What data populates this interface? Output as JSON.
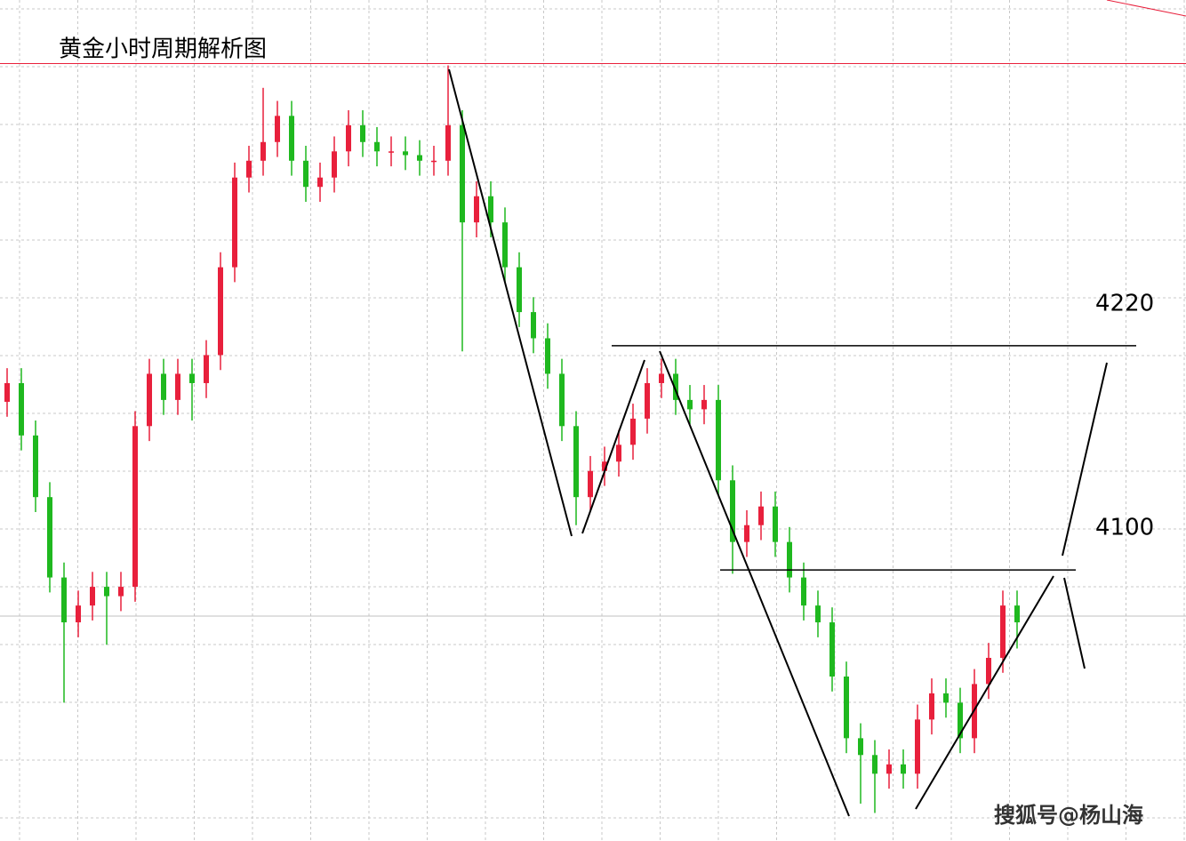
{
  "chart_data": {
    "type": "candlestick",
    "title": "黄金小时周期解析图",
    "watermark": "搜狐号@杨山海",
    "up_color": "#e8203c",
    "down_color": "#1fb81f",
    "ylim": [
      3955,
      4405
    ],
    "open": [
      4190,
      4200,
      4172,
      4139,
      4096,
      4072,
      4081,
      4091,
      4086,
      4091,
      4177,
      4205,
      4191,
      4205,
      4200,
      4215,
      4262,
      4310,
      4319,
      4329,
      4343,
      4319,
      4305,
      4310,
      4324,
      4338,
      4329,
      4324,
      4324,
      4322,
      4319,
      4319,
      4338,
      4286,
      4300,
      4286,
      4262,
      4238,
      4224,
      4205,
      4177,
      4139,
      4153,
      4158,
      4167,
      4181,
      4200,
      4205,
      4191,
      4186,
      4191,
      4148,
      4115,
      4124,
      4134,
      4115,
      4096,
      4081,
      4072,
      4043,
      4010,
      4001,
      3991,
      3996,
      3991,
      4020,
      4034,
      4029,
      4010,
      4039,
      4053,
      4081
    ],
    "high": [
      4208,
      4208,
      4180,
      4147,
      4104,
      4089,
      4099,
      4099,
      4099,
      4185,
      4213,
      4213,
      4213,
      4213,
      4223,
      4270,
      4318,
      4327,
      4358,
      4351,
      4351,
      4327,
      4318,
      4332,
      4346,
      4346,
      4337,
      4332,
      4332,
      4330,
      4327,
      4370,
      4346,
      4308,
      4308,
      4294,
      4270,
      4246,
      4232,
      4213,
      4185,
      4161,
      4166,
      4175,
      4189,
      4208,
      4213,
      4213,
      4199,
      4199,
      4199,
      4156,
      4132,
      4142,
      4142,
      4123,
      4104,
      4089,
      4080,
      4051,
      4018,
      4009,
      4004,
      4004,
      4028,
      4042,
      4042,
      4037,
      4047,
      4061,
      4089,
      4089
    ],
    "low": [
      4182,
      4164,
      4131,
      4088,
      4029,
      4064,
      4073,
      4060,
      4078,
      4083,
      4169,
      4183,
      4183,
      4180,
      4192,
      4207,
      4254,
      4302,
      4311,
      4321,
      4311,
      4297,
      4297,
      4302,
      4316,
      4321,
      4316,
      4316,
      4314,
      4311,
      4311,
      4311,
      4217,
      4278,
      4278,
      4254,
      4230,
      4216,
      4197,
      4169,
      4124,
      4131,
      4145,
      4150,
      4159,
      4173,
      4192,
      4183,
      4178,
      4178,
      4140,
      4098,
      4107,
      4116,
      4107,
      4088,
      4073,
      4064,
      4035,
      4002,
      3975,
      3970,
      3983,
      3983,
      3983,
      4012,
      4021,
      4002,
      4002,
      4031,
      4045,
      4058
    ],
    "close": [
      4200,
      4172,
      4139,
      4096,
      4072,
      4081,
      4091,
      4086,
      4091,
      4177,
      4205,
      4191,
      4205,
      4200,
      4215,
      4262,
      4310,
      4319,
      4329,
      4343,
      4319,
      4305,
      4310,
      4324,
      4338,
      4329,
      4324,
      4324,
      4322,
      4319,
      4319,
      4338,
      4286,
      4300,
      4286,
      4262,
      4238,
      4224,
      4205,
      4177,
      4139,
      4153,
      4158,
      4167,
      4181,
      4200,
      4205,
      4191,
      4186,
      4191,
      4148,
      4115,
      4124,
      4134,
      4115,
      4096,
      4081,
      4072,
      4043,
      4010,
      4001,
      3991,
      3996,
      3991,
      4020,
      4034,
      4029,
      4010,
      4039,
      4053,
      4081,
      4072
    ],
    "levels": [
      4220,
      4100
    ],
    "resistance_line": 4371,
    "resistance_color": "#e8203c"
  }
}
